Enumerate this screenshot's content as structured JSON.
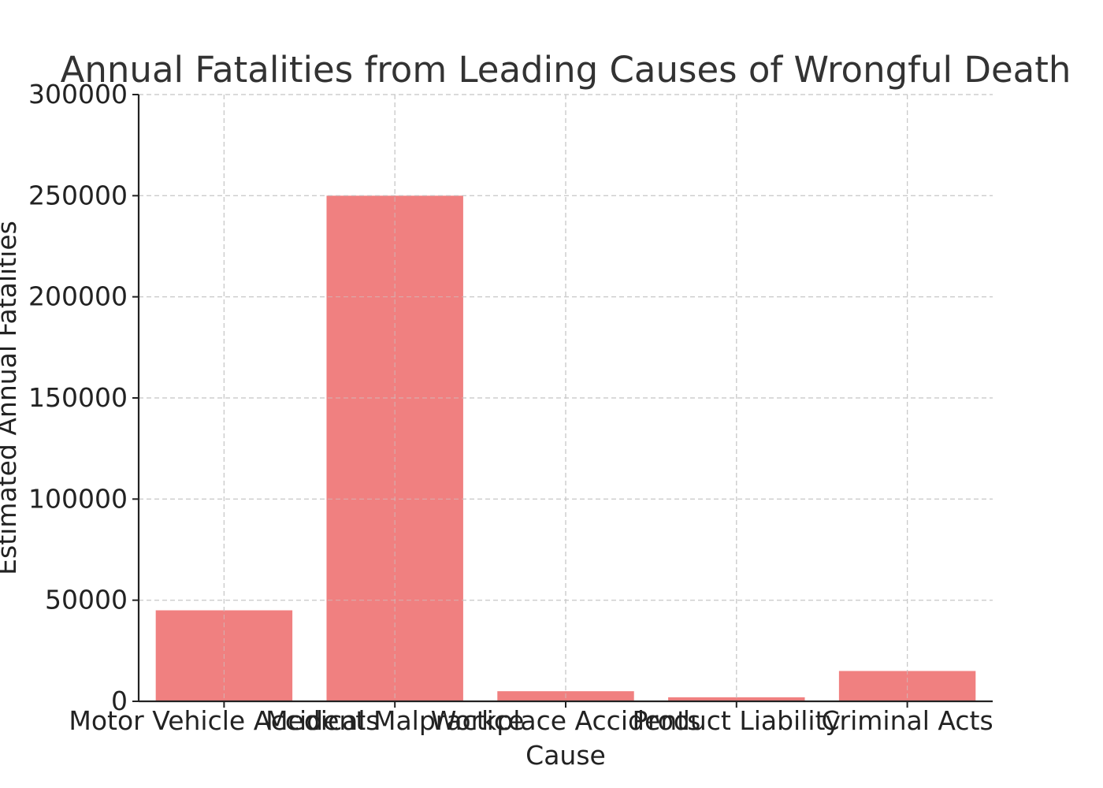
{
  "chart_data": {
    "type": "bar",
    "title": "Annual Fatalities from Leading Causes of Wrongful Death",
    "xlabel": "Cause",
    "ylabel": "Estimated Annual Fatalities",
    "categories": [
      "Motor Vehicle Accidents",
      "Medical Malpractice",
      "Workplace Accidents",
      "Product Liability",
      "Criminal Acts"
    ],
    "values": [
      45000,
      250000,
      5000,
      2000,
      15000
    ],
    "ylim": [
      0,
      300000
    ],
    "yticks": [
      0,
      50000,
      100000,
      150000,
      200000,
      250000,
      300000
    ],
    "grid": true,
    "bar_color": "#f08080"
  }
}
